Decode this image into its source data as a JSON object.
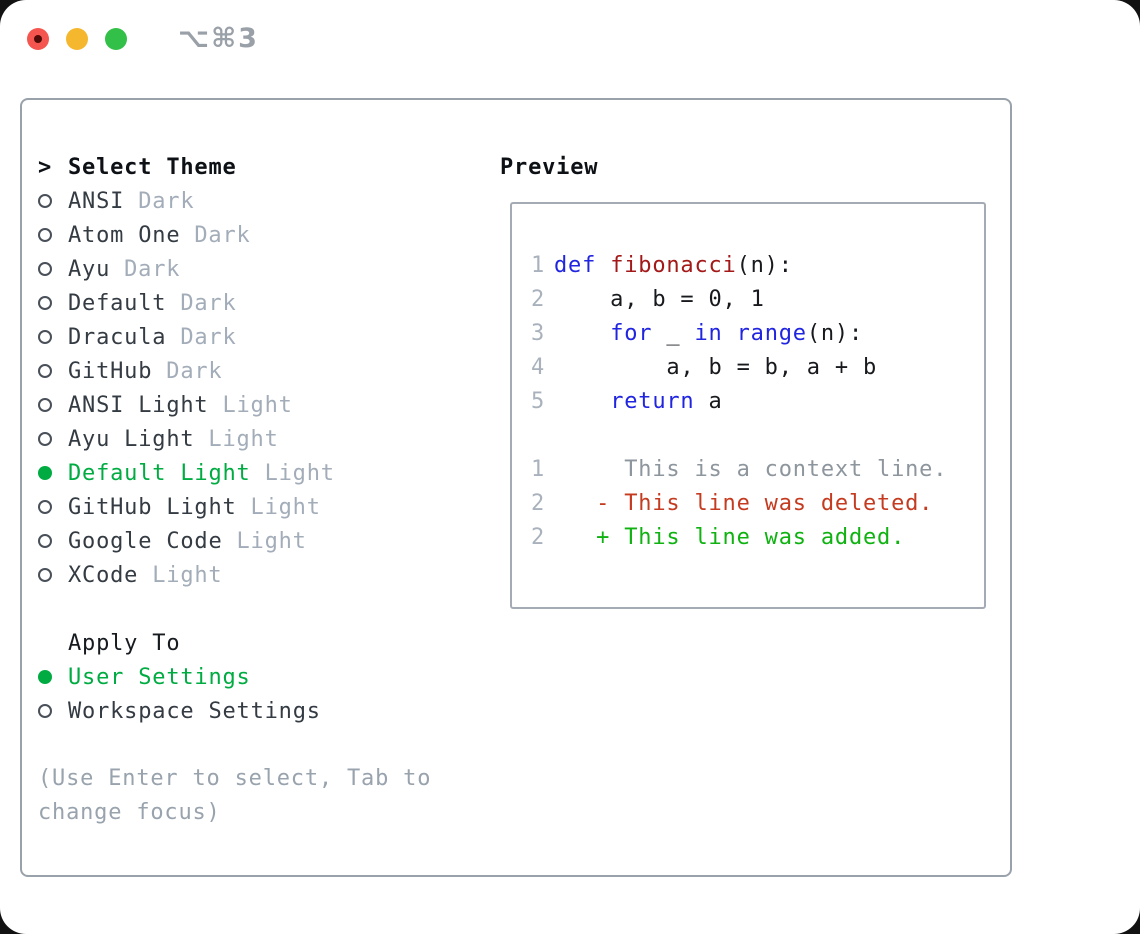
{
  "window": {
    "title": "⌥⌘3",
    "traffic_lights": {
      "close_color": "#f4554e",
      "minimize_color": "#f5b72d",
      "zoom_color": "#33c048"
    }
  },
  "theme_selector": {
    "header": {
      "prompt": ">",
      "label": "Select Theme"
    },
    "themes": [
      {
        "name": "ANSI",
        "variant": "Dark",
        "selected": false
      },
      {
        "name": "Atom One",
        "variant": "Dark",
        "selected": false
      },
      {
        "name": "Ayu",
        "variant": "Dark",
        "selected": false
      },
      {
        "name": "Default",
        "variant": "Dark",
        "selected": false
      },
      {
        "name": "Dracula",
        "variant": "Dark",
        "selected": false
      },
      {
        "name": "GitHub",
        "variant": "Dark",
        "selected": false
      },
      {
        "name": "ANSI Light",
        "variant": "Light",
        "selected": false
      },
      {
        "name": "Ayu Light",
        "variant": "Light",
        "selected": false
      },
      {
        "name": "Default Light",
        "variant": "Light",
        "selected": true
      },
      {
        "name": "GitHub Light",
        "variant": "Light",
        "selected": false
      },
      {
        "name": "Google Code",
        "variant": "Light",
        "selected": false
      },
      {
        "name": "XCode",
        "variant": "Light",
        "selected": false
      }
    ],
    "apply_to": {
      "label": "Apply To",
      "options": [
        {
          "name": "User Settings",
          "selected": true
        },
        {
          "name": "Workspace Settings",
          "selected": false
        }
      ]
    },
    "hint": "(Use Enter to select, Tab to change focus)"
  },
  "preview": {
    "label": "Preview",
    "code_lines": [
      {
        "num": "1",
        "tokens": [
          [
            "def",
            "kw"
          ],
          [
            " ",
            "pl"
          ],
          [
            "fibonacci",
            "fn"
          ],
          [
            "(n):",
            "pl"
          ]
        ]
      },
      {
        "num": "2",
        "tokens": [
          [
            "    a, b = 0, 1",
            "pl"
          ]
        ]
      },
      {
        "num": "3",
        "tokens": [
          [
            "    ",
            "pl"
          ],
          [
            "for",
            "kw"
          ],
          [
            " _ ",
            "pl"
          ],
          [
            "in",
            "kw"
          ],
          [
            " ",
            "pl"
          ],
          [
            "range",
            "kw"
          ],
          [
            "(n):",
            "pl"
          ]
        ]
      },
      {
        "num": "4",
        "tokens": [
          [
            "        a, b = b, a + b",
            "pl"
          ]
        ]
      },
      {
        "num": "5",
        "tokens": [
          [
            "    ",
            "pl"
          ],
          [
            "return",
            "kw"
          ],
          [
            " a",
            "pl"
          ]
        ]
      }
    ],
    "diff_lines": [
      {
        "num": "1",
        "content": "     This is a context line.",
        "kind": "context"
      },
      {
        "num": "2",
        "content": "   - This line was deleted.",
        "kind": "deleted"
      },
      {
        "num": "2",
        "content": "   + This line was added.",
        "kind": "added"
      }
    ]
  },
  "colors": {
    "selection_green": "#00ac42",
    "diff_added_green": "#0fb211",
    "diff_deleted_red": "#c43b20",
    "context_gray": "#8d959d",
    "keyword_blue": "#2125e0",
    "function_red": "#a31818",
    "muted_tag_gray": "#a3adb9",
    "panel_border_gray": "#99a1ab"
  }
}
